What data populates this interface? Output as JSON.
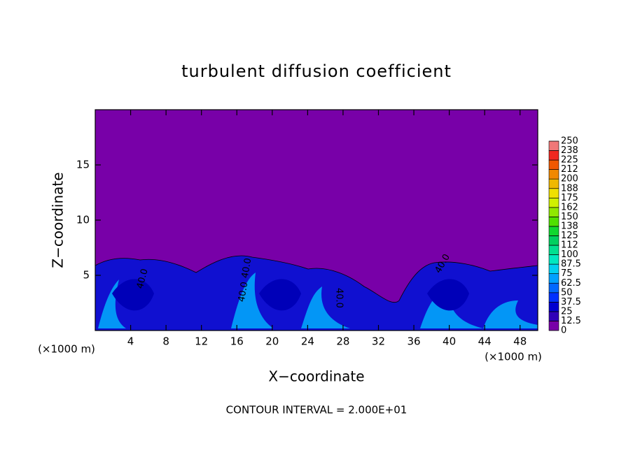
{
  "chart_data": {
    "type": "heatmap",
    "title": "turbulent diffusion coefficient",
    "x_label": "X−coordinate",
    "y_label": "Z−coordinate",
    "x_unit": "(×1000 m)",
    "footer": "CONTOUR INTERVAL = 2.000E+01",
    "annotations": [
      "40.0",
      "40.0",
      "40.0",
      "40.0",
      "40.0"
    ],
    "xlim": [
      0,
      50
    ],
    "xticks": [
      4,
      8,
      12,
      16,
      20,
      24,
      28,
      32,
      36,
      40,
      44,
      48
    ],
    "ylim": [
      0,
      20
    ],
    "yticks": [
      5,
      10,
      15
    ],
    "colorbar": {
      "ticks": [
        0,
        12.5,
        25,
        37.5,
        50,
        62.5,
        75,
        87.5,
        100,
        {
          "value": 112.5,
          "label": "112"
        },
        125,
        {
          "value": 137.5,
          "label": "138"
        },
        150,
        {
          "value": 162.5,
          "label": "162"
        },
        175,
        {
          "value": 187.5,
          "label": "188"
        },
        200,
        {
          "value": 212.5,
          "label": "212"
        },
        225,
        {
          "value": 237.5,
          "label": "238"
        },
        250
      ],
      "colors": [
        "#7800a8",
        "#3000b8",
        "#0000d0",
        "#0030ff",
        "#0068ff",
        "#00a0ff",
        "#00d0f0",
        "#00e8c0",
        "#00e090",
        "#00d060",
        "#10d830",
        "#50e000",
        "#90e800",
        "#d0f000",
        "#f0e000",
        "#f0b800",
        "#f08800",
        "#f05800",
        "#f02820",
        "#f07878"
      ]
    }
  }
}
